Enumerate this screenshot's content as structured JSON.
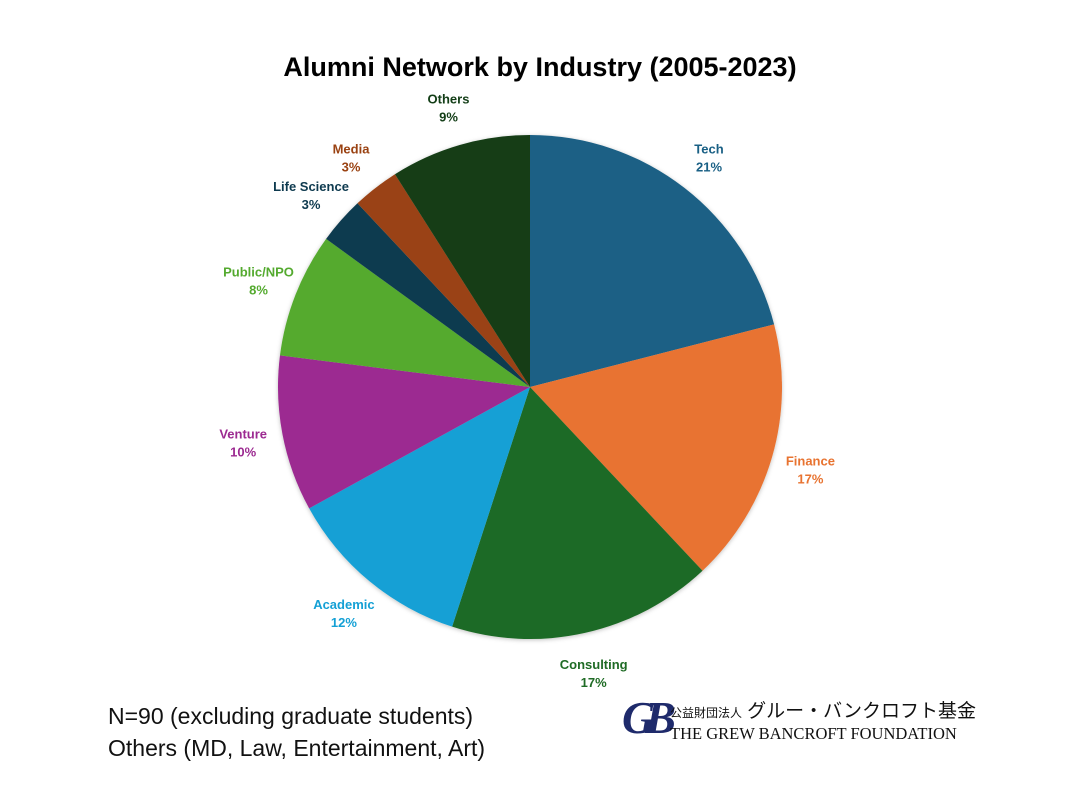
{
  "chart_data": {
    "type": "pie",
    "title": "Alumni Network by Industry (2005-2023)",
    "slices": [
      {
        "label": "Tech",
        "percent_label": "21%",
        "value": 21,
        "color": "#1a6085"
      },
      {
        "label": "Finance",
        "percent_label": "17%",
        "value": 17,
        "color": "#e87330"
      },
      {
        "label": "Consulting",
        "percent_label": "17%",
        "value": 17,
        "color": "#1f6b25"
      },
      {
        "label": "Academic",
        "percent_label": "12%",
        "value": 12,
        "color": "#14a0d5"
      },
      {
        "label": "Venture",
        "percent_label": "10%",
        "value": 10,
        "color": "#9c2a91"
      },
      {
        "label": "Public/NPO",
        "percent_label": "8%",
        "value": 8,
        "color": "#54aa2f"
      },
      {
        "label": "Life Science",
        "percent_label": "3%",
        "value": 3,
        "color": "#0e3a4f"
      },
      {
        "label": "Media",
        "percent_label": "3%",
        "value": 3,
        "color": "#9a4212"
      },
      {
        "label": "Others",
        "percent_label": "9%",
        "value": 9,
        "color": "#123d16"
      }
    ],
    "start_angle": "12 o'clock",
    "direction": "clockwise",
    "legend": "none"
  },
  "footnotes": [
    "N=90 (excluding graduate students)",
    "Others (MD, Law, Entertainment, Art)"
  ],
  "logo": {
    "mark": "GB",
    "jp_small": "公益財団法人",
    "jp_large": "グルー・バンクロフト基金",
    "en": "THE GREW BANCROFT FOUNDATION"
  }
}
